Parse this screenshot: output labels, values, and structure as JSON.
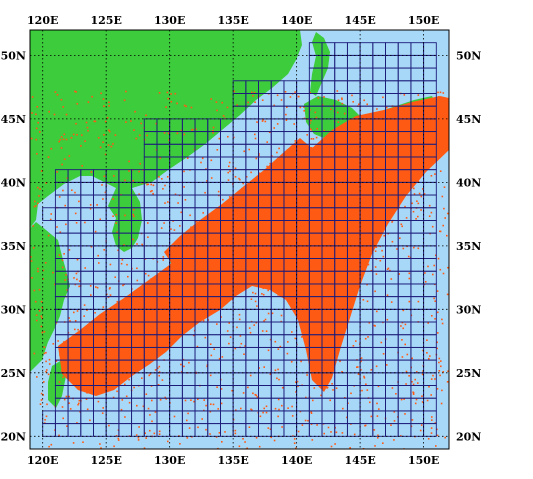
{
  "map": {
    "lon_range": [
      119,
      152
    ],
    "lat_range": [
      19,
      52
    ],
    "x_ticks": [
      {
        "value": 120,
        "label": "120E"
      },
      {
        "value": 125,
        "label": "125E"
      },
      {
        "value": 130,
        "label": "130E"
      },
      {
        "value": 135,
        "label": "135E"
      },
      {
        "value": 140,
        "label": "140E"
      },
      {
        "value": 145,
        "label": "145E"
      },
      {
        "value": 150,
        "label": "150E"
      }
    ],
    "y_ticks": [
      {
        "value": 50,
        "label": "50N"
      },
      {
        "value": 45,
        "label": "45N"
      },
      {
        "value": 40,
        "label": "40N"
      },
      {
        "value": 35,
        "label": "35N"
      },
      {
        "value": 30,
        "label": "30N"
      },
      {
        "value": 25,
        "label": "25N"
      },
      {
        "value": 20,
        "label": "20N"
      }
    ],
    "colors": {
      "ocean": "#a8d8f8",
      "land": "#3ccc3c",
      "density": "#ff5a14",
      "grid": "#1c1c7a",
      "graticule": "#000000"
    }
  }
}
